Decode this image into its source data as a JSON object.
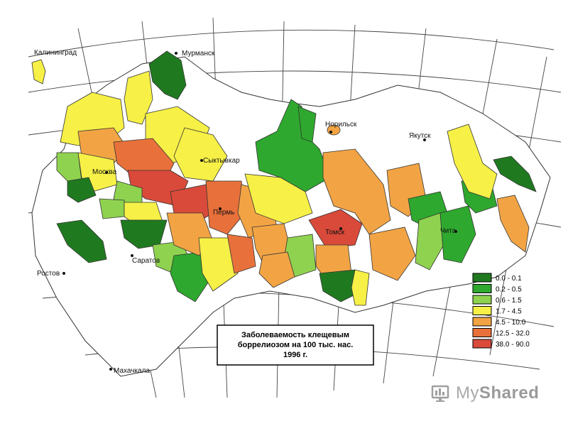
{
  "labels": {
    "kaliningrad": "Калининград",
    "murmansk": "Мурманск",
    "norilsk": "Норильск",
    "yakutsk": "Якутск",
    "syktyvkar": "Сыктывкар",
    "moskva": "Москва",
    "perm": "Пермь",
    "tomsk": "Томск",
    "chita": "Чита",
    "saratov": "Саратов",
    "rostov": "Ростов",
    "makhachkala": "Махачкала"
  },
  "title_lines": [
    "Заболеваемость клещевым",
    "боррелиозом на 100 тыс. нас.",
    "1996 г."
  ],
  "legend": [
    {
      "range": "0.0 - 0.1",
      "color": "#1f7a1f"
    },
    {
      "range": "0.2 - 0.5",
      "color": "#2ea82e"
    },
    {
      "range": "0.6 - 1.5",
      "color": "#8fd24f"
    },
    {
      "range": "1.7 - 4.5",
      "color": "#f6f047"
    },
    {
      "range": "4.5 - 10.0",
      "color": "#f2a444"
    },
    {
      "range": "12.5 - 32.0",
      "color": "#e8703a"
    },
    {
      "range": "38.0 - 90.0",
      "color": "#d94a3a"
    }
  ],
  "watermark": {
    "brand_light": "My",
    "brand_bold": "Shared"
  }
}
